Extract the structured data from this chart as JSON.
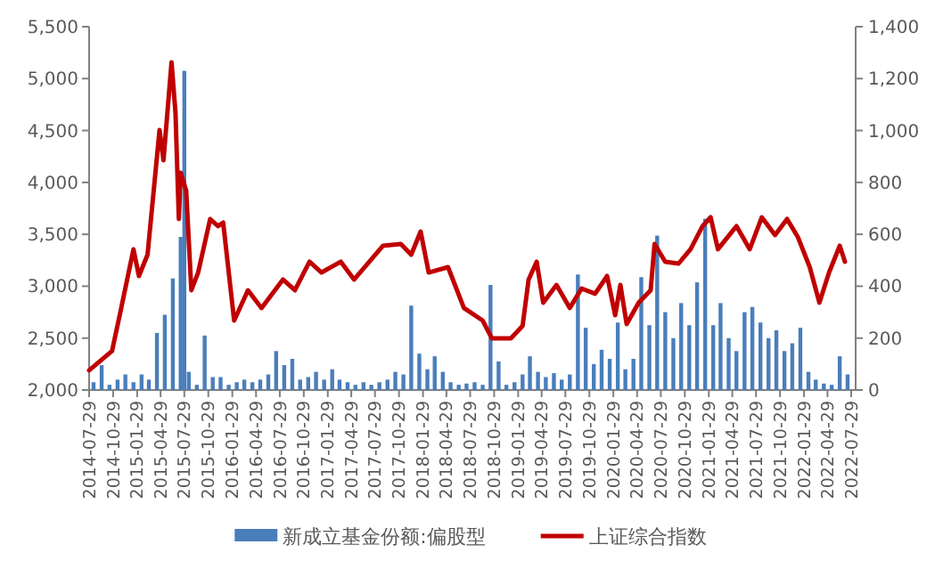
{
  "chart_data": {
    "type": "bar",
    "xlim": [
      "2014-07-29",
      "2022-08-15"
    ],
    "xticks": [
      "2014-07-29",
      "2014-10-29",
      "2015-01-29",
      "2015-04-29",
      "2015-07-29",
      "2015-10-29",
      "2016-01-29",
      "2016-04-29",
      "2016-07-29",
      "2016-10-29",
      "2017-01-29",
      "2017-04-29",
      "2017-07-29",
      "2017-10-29",
      "2018-01-29",
      "2018-04-29",
      "2018-07-29",
      "2018-10-29",
      "2019-01-29",
      "2019-04-29",
      "2019-07-29",
      "2019-10-29",
      "2020-01-29",
      "2020-04-29",
      "2020-07-29",
      "2020-10-29",
      "2021-01-29",
      "2021-04-29",
      "2021-07-29",
      "2021-10-29",
      "2022-01-29",
      "2022-04-29",
      "2022-07-29"
    ],
    "ylim": [
      2000,
      5500
    ],
    "yticks": [
      {
        "value": 2000,
        "label": "2,000"
      },
      {
        "value": 2500,
        "label": "2,500"
      },
      {
        "value": 3000,
        "label": "3,000"
      },
      {
        "value": 3500,
        "label": "3,500"
      },
      {
        "value": 4000,
        "label": "4,000"
      },
      {
        "value": 4500,
        "label": "4,500"
      },
      {
        "value": 5000,
        "label": "5,000"
      },
      {
        "value": 5500,
        "label": "5,500"
      }
    ],
    "y2lim": [
      0,
      1400
    ],
    "y2ticks": [
      0,
      {
        "value": 200,
        "label": "200"
      },
      {
        "value": 400,
        "label": "400"
      },
      {
        "value": 600,
        "label": "600"
      },
      {
        "value": 800,
        "label": "800"
      },
      {
        "value": 1000,
        "label": "1,000"
      },
      {
        "value": 1200,
        "label": "1,200"
      },
      {
        "value": 1400,
        "label": "1,400"
      }
    ],
    "legend": "bottom",
    "series": [
      {
        "name": "新成立基金份额:偏股型",
        "axis": "y2",
        "color": "#4a7ebb",
        "x": [
          "2014-08-15",
          "2014-09-15",
          "2014-10-15",
          "2014-11-15",
          "2014-12-15",
          "2015-01-15",
          "2015-02-15",
          "2015-03-15",
          "2015-04-15",
          "2015-05-15",
          "2015-06-15",
          "2015-07-15",
          "2015-07-29",
          "2015-08-15",
          "2015-09-15",
          "2015-10-15",
          "2015-11-15",
          "2015-12-15",
          "2016-01-15",
          "2016-02-15",
          "2016-03-15",
          "2016-04-15",
          "2016-05-15",
          "2016-06-15",
          "2016-07-15",
          "2016-08-15",
          "2016-09-15",
          "2016-10-15",
          "2016-11-15",
          "2016-12-15",
          "2017-01-15",
          "2017-02-15",
          "2017-03-15",
          "2017-04-15",
          "2017-05-15",
          "2017-06-15",
          "2017-07-15",
          "2017-08-15",
          "2017-09-15",
          "2017-10-15",
          "2017-11-15",
          "2017-12-15",
          "2018-01-15",
          "2018-02-15",
          "2018-03-15",
          "2018-04-15",
          "2018-05-15",
          "2018-06-15",
          "2018-07-15",
          "2018-08-15",
          "2018-09-15",
          "2018-10-15",
          "2018-11-15",
          "2018-12-15",
          "2019-01-15",
          "2019-02-15",
          "2019-03-15",
          "2019-04-15",
          "2019-05-15",
          "2019-06-15",
          "2019-07-15",
          "2019-08-15",
          "2019-09-15",
          "2019-10-15",
          "2019-11-15",
          "2019-12-15",
          "2020-01-15",
          "2020-02-15",
          "2020-03-15",
          "2020-04-15",
          "2020-05-15",
          "2020-06-15",
          "2020-07-15",
          "2020-08-15",
          "2020-09-15",
          "2020-10-15",
          "2020-11-15",
          "2020-12-15",
          "2021-01-15",
          "2021-02-15",
          "2021-03-15",
          "2021-04-15",
          "2021-05-15",
          "2021-06-15",
          "2021-07-15",
          "2021-08-15",
          "2021-09-15",
          "2021-10-15",
          "2021-11-15",
          "2021-12-15",
          "2022-01-15",
          "2022-02-15",
          "2022-03-15",
          "2022-04-15",
          "2022-05-15",
          "2022-06-15",
          "2022-07-15"
        ],
        "values": [
          30,
          96,
          20,
          40,
          60,
          30,
          60,
          40,
          220,
          290,
          430,
          590,
          1230,
          70,
          20,
          210,
          50,
          50,
          20,
          30,
          40,
          30,
          40,
          60,
          150,
          96,
          120,
          40,
          50,
          70,
          40,
          80,
          40,
          30,
          20,
          30,
          20,
          30,
          40,
          70,
          60,
          325,
          140,
          80,
          130,
          70,
          30,
          20,
          25,
          30,
          20,
          405,
          110,
          20,
          30,
          60,
          130,
          70,
          50,
          65,
          40,
          60,
          445,
          240,
          100,
          155,
          120,
          260,
          80,
          120,
          435,
          250,
          595,
          300,
          200,
          335,
          250,
          415,
          660,
          250,
          335,
          200,
          150,
          300,
          320,
          260,
          200,
          230,
          150,
          180,
          240,
          70,
          40,
          25,
          20,
          130,
          60
        ]
      },
      {
        "name": "上证综合指数",
        "type": "line",
        "color": "#c00000",
        "x": [
          "2014-07-29",
          "2014-10-25",
          "2014-11-29",
          "2015-01-15",
          "2015-02-05",
          "2015-03-10",
          "2015-04-25",
          "2015-05-10",
          "2015-06-10",
          "2015-06-25",
          "2015-07-08",
          "2015-07-15",
          "2015-08-05",
          "2015-08-25",
          "2015-09-20",
          "2015-11-05",
          "2015-12-05",
          "2015-12-25",
          "2016-02-05",
          "2016-03-29",
          "2016-05-20",
          "2016-08-10",
          "2016-09-25",
          "2016-11-20",
          "2017-01-05",
          "2017-03-20",
          "2017-05-10",
          "2017-08-29",
          "2017-11-05",
          "2017-12-15",
          "2018-01-20",
          "2018-02-20",
          "2018-05-05",
          "2018-07-05",
          "2018-09-15",
          "2018-10-20",
          "2019-01-01",
          "2019-02-15",
          "2019-03-10",
          "2019-04-10",
          "2019-05-05",
          "2019-06-25",
          "2019-08-15",
          "2019-09-29",
          "2019-11-20",
          "2020-01-05",
          "2020-02-05",
          "2020-02-25",
          "2020-03-20",
          "2020-05-05",
          "2020-06-20",
          "2020-07-05",
          "2020-08-15",
          "2020-10-05",
          "2020-11-20",
          "2021-01-05",
          "2021-02-05",
          "2021-03-05",
          "2021-05-15",
          "2021-07-05",
          "2021-08-20",
          "2021-10-10",
          "2021-11-25",
          "2022-01-05",
          "2022-02-20",
          "2022-03-29",
          "2022-05-05",
          "2022-06-15",
          "2022-07-05"
        ],
        "values": [
          2189,
          2377,
          2790,
          3356,
          3098,
          3304,
          4505,
          4214,
          5157,
          4677,
          3647,
          4094,
          3922,
          2961,
          3132,
          3647,
          3579,
          3613,
          2669,
          2961,
          2790,
          3064,
          2961,
          3236,
          3132,
          3236,
          3064,
          3390,
          3407,
          3304,
          3527,
          3132,
          3184,
          2790,
          2669,
          2498,
          2498,
          2618,
          3064,
          3236,
          2841,
          3012,
          2790,
          2978,
          2927,
          3098,
          2721,
          3012,
          2635,
          2841,
          2961,
          3407,
          3236,
          3218,
          3356,
          3579,
          3664,
          3356,
          3579,
          3356,
          3664,
          3493,
          3647,
          3476,
          3184,
          2841,
          3132,
          3390,
          3236
        ]
      }
    ]
  }
}
